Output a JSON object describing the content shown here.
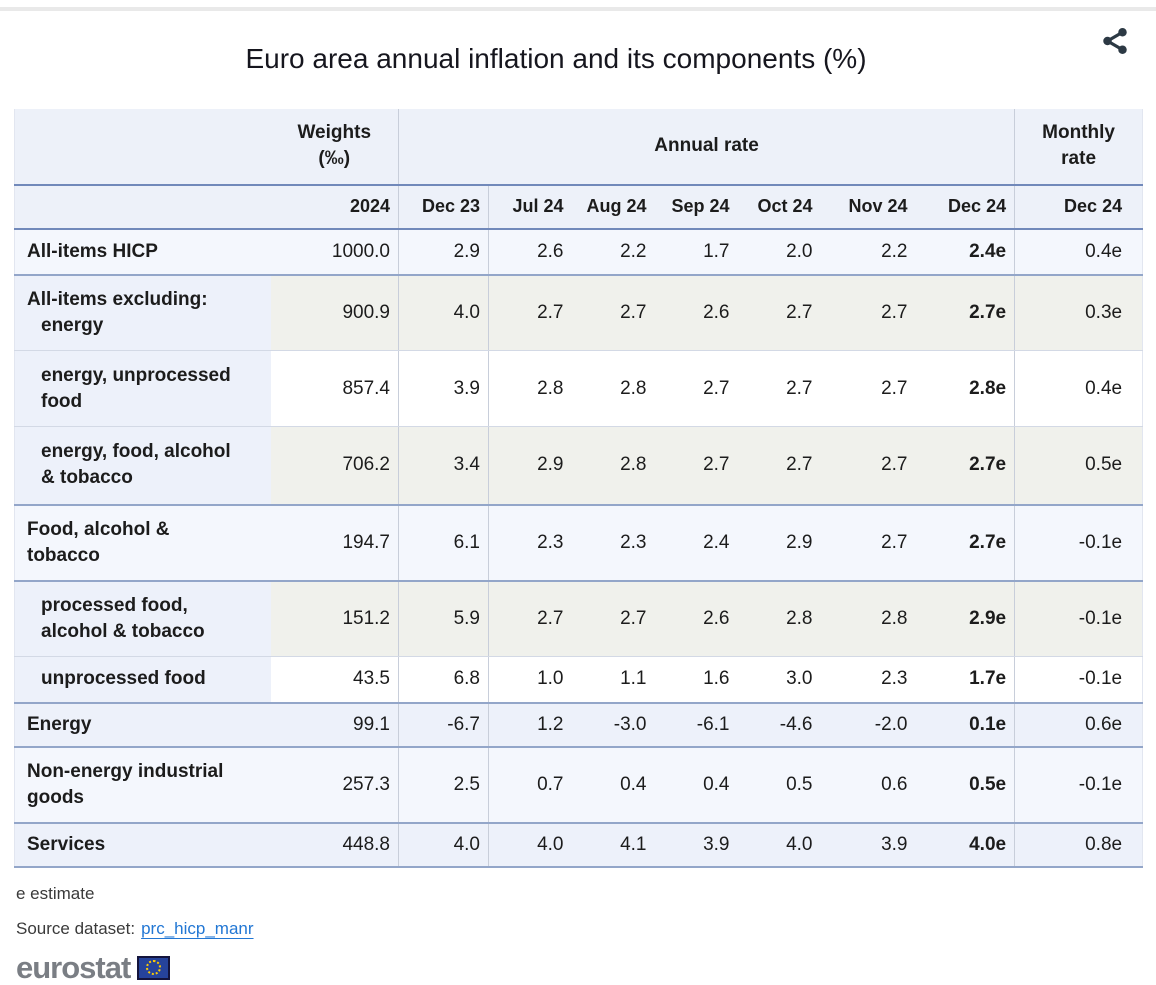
{
  "chart_data": {
    "type": "table",
    "title": "Euro area annual inflation and its components (%)",
    "column_groups": [
      "Weights (‰)",
      "Annual rate",
      "Monthly rate"
    ],
    "columns": [
      "2024",
      "Dec 23",
      "Jul 24",
      "Aug 24",
      "Sep 24",
      "Oct 24",
      "Nov 24",
      "Dec 24",
      "Dec 24"
    ],
    "rows": [
      {
        "label": "All-items HICP",
        "label_lines": [
          [
            "All-items HICP",
            0
          ]
        ],
        "weight": "1000.0",
        "annual": [
          "2.9",
          "2.6",
          "2.2",
          "1.7",
          "2.0",
          "2.2",
          "2.4e"
        ],
        "monthly": "0.4e",
        "tone": "blue",
        "sep": "strong"
      },
      {
        "label": "All-items excluding: energy",
        "label_lines": [
          [
            "All-items excluding:",
            0
          ],
          [
            "energy",
            1
          ]
        ],
        "weight": "900.9",
        "annual": [
          "4.0",
          "2.7",
          "2.7",
          "2.6",
          "2.7",
          "2.7",
          "2.7e"
        ],
        "monthly": "0.3e",
        "tone": "gray",
        "sep": "light"
      },
      {
        "label": "energy, unprocessed food",
        "label_lines": [
          [
            "energy, unprocessed",
            1
          ],
          [
            "food",
            1
          ]
        ],
        "weight": "857.4",
        "annual": [
          "3.9",
          "2.8",
          "2.8",
          "2.7",
          "2.7",
          "2.7",
          "2.8e"
        ],
        "monthly": "0.4e",
        "tone": "white",
        "sep": "light"
      },
      {
        "label": "energy, food, alcohol & tobacco",
        "label_lines": [
          [
            "energy, food, alcohol",
            1
          ],
          [
            "& tobacco",
            1
          ]
        ],
        "weight": "706.2",
        "annual": [
          "3.4",
          "2.9",
          "2.8",
          "2.7",
          "2.7",
          "2.7",
          "2.7e"
        ],
        "monthly": "0.5e",
        "tone": "gray",
        "sep": "strong"
      },
      {
        "label": "Food, alcohol & tobacco",
        "label_lines": [
          [
            "Food, alcohol &",
            0
          ],
          [
            "tobacco",
            0
          ]
        ],
        "weight": "194.7",
        "annual": [
          "6.1",
          "2.3",
          "2.3",
          "2.4",
          "2.9",
          "2.7",
          "2.7e"
        ],
        "monthly": "-0.1e",
        "tone": "blue",
        "sep": "strong"
      },
      {
        "label": "processed food, alcohol & tobacco",
        "label_lines": [
          [
            "processed food,",
            1
          ],
          [
            "alcohol & tobacco",
            1
          ]
        ],
        "weight": "151.2",
        "annual": [
          "5.9",
          "2.7",
          "2.7",
          "2.6",
          "2.8",
          "2.8",
          "2.9e"
        ],
        "monthly": "-0.1e",
        "tone": "gray",
        "sep": "light"
      },
      {
        "label": "unprocessed food",
        "label_lines": [
          [
            "unprocessed food",
            1
          ]
        ],
        "weight": "43.5",
        "annual": [
          "6.8",
          "1.0",
          "1.1",
          "1.6",
          "3.0",
          "2.3",
          "1.7e"
        ],
        "monthly": "-0.1e",
        "tone": "white",
        "sep": "strong"
      },
      {
        "label": "Energy",
        "label_lines": [
          [
            "Energy",
            0
          ]
        ],
        "weight": "99.1",
        "annual": [
          "-6.7",
          "1.2",
          "-3.0",
          "-6.1",
          "-4.6",
          "-2.0",
          "0.1e"
        ],
        "monthly": "0.6e",
        "tone": "blue2",
        "sep": "strong"
      },
      {
        "label": "Non-energy industrial goods",
        "label_lines": [
          [
            "Non-energy industrial",
            0
          ],
          [
            "goods",
            0
          ]
        ],
        "weight": "257.3",
        "annual": [
          "2.5",
          "0.7",
          "0.4",
          "0.4",
          "0.5",
          "0.6",
          "0.5e"
        ],
        "monthly": "-0.1e",
        "tone": "blue",
        "sep": "strong"
      },
      {
        "label": "Services",
        "label_lines": [
          [
            "Services",
            0
          ]
        ],
        "weight": "448.8",
        "annual": [
          "4.0",
          "4.0",
          "4.1",
          "3.9",
          "4.0",
          "3.9",
          "4.0e"
        ],
        "monthly": "0.8e",
        "tone": "blue2",
        "sep": "strong"
      }
    ],
    "note": "e estimate"
  },
  "table_header": {
    "weights_line1": "Weights",
    "weights_line2": "(‰)",
    "annual": "Annual rate",
    "monthly_line1": "Monthly",
    "monthly_line2": "rate"
  },
  "footer": {
    "estimate_note": "e estimate",
    "source_label": "Source dataset:",
    "source_link": "prc_hicp_manr",
    "logo_text": "eurostat"
  },
  "colors": {
    "text": "#1c1c1c",
    "accent_border": "#7189ba",
    "row_border": "#93a6c9",
    "light_border": "#d3d9e5",
    "col_border": "#c8ceda",
    "header_bg": "#edf1f9",
    "row_blue": "#f4f7fd",
    "row_blue2": "#edf1fa",
    "row_gray": "#f0f1ec",
    "row_white": "#ffffff",
    "link": "#2277d4",
    "logo_gray": "#7a7e84",
    "flag_blue": "#26439b",
    "star_yellow": "#ffcc00",
    "icon_dark": "#2c3944",
    "strip_gray": "#e9e9e9"
  }
}
